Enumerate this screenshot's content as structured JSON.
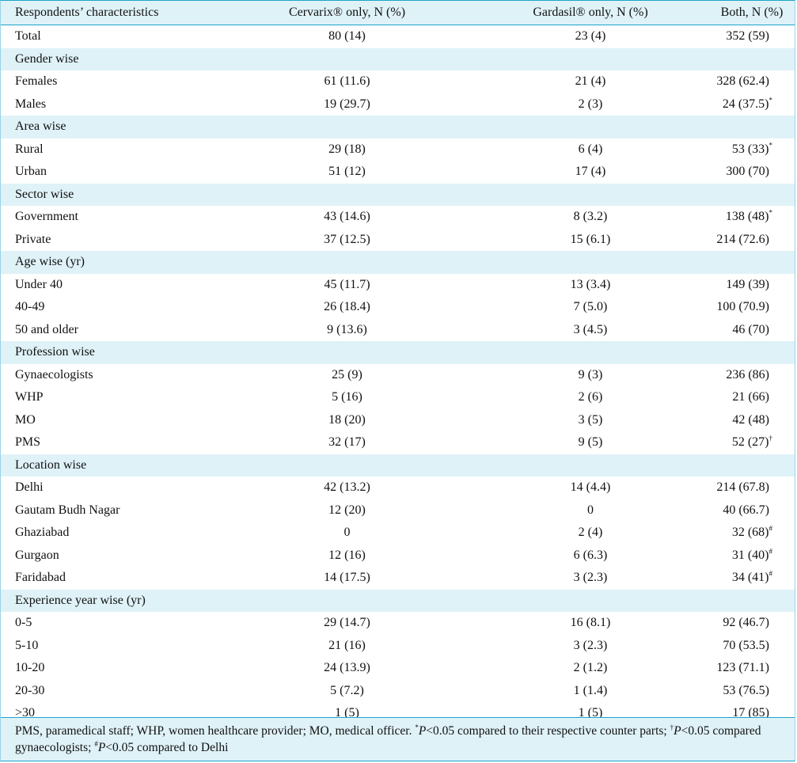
{
  "header": {
    "col1": "Respondents’ characteristics",
    "col2": "Cervarix® only, N (%)",
    "col3": "Gardasil® only, N (%)",
    "col4": "Both, N (%)"
  },
  "rows": [
    {
      "kind": "data",
      "label": "Total",
      "cervarix": "80 (14)",
      "gardasil": "23 (4)",
      "both": "352 (59)",
      "mark": ""
    },
    {
      "kind": "section",
      "label": "Gender wise"
    },
    {
      "kind": "data",
      "label": "Females",
      "cervarix": "61 (11.6)",
      "gardasil": "21 (4)",
      "both": "328 (62.4)",
      "mark": ""
    },
    {
      "kind": "data",
      "label": "Males",
      "cervarix": "19 (29.7)",
      "gardasil": "2 (3)",
      "both": "24 (37.5)",
      "mark": "*"
    },
    {
      "kind": "section",
      "label": "Area wise"
    },
    {
      "kind": "data",
      "label": "Rural",
      "cervarix": "29 (18)",
      "gardasil": "6 (4)",
      "both": "53 (33)",
      "mark": "*"
    },
    {
      "kind": "data",
      "label": "Urban",
      "cervarix": "51 (12)",
      "gardasil": "17 (4)",
      "both": "300 (70)",
      "mark": ""
    },
    {
      "kind": "section",
      "label": "Sector wise"
    },
    {
      "kind": "data",
      "label": "Government",
      "cervarix": "43 (14.6)",
      "gardasil": "8 (3.2)",
      "both": "138 (48)",
      "mark": "*"
    },
    {
      "kind": "data",
      "label": "Private",
      "cervarix": "37 (12.5)",
      "gardasil": "15 (6.1)",
      "both": "214 (72.6)",
      "mark": ""
    },
    {
      "kind": "section",
      "label": "Age wise (yr)"
    },
    {
      "kind": "data",
      "label": "Under 40",
      "cervarix": "45 (11.7)",
      "gardasil": "13 (3.4)",
      "both": "149 (39)",
      "mark": ""
    },
    {
      "kind": "data",
      "label": "40-49",
      "cervarix": "26 (18.4)",
      "gardasil": "7 (5.0)",
      "both": "100 (70.9)",
      "mark": ""
    },
    {
      "kind": "data",
      "label": "50 and older",
      "cervarix": "9 (13.6)",
      "gardasil": "3 (4.5)",
      "both": "46 (70)",
      "mark": ""
    },
    {
      "kind": "section",
      "label": "Profession wise"
    },
    {
      "kind": "data",
      "label": "Gynaecologists",
      "cervarix": "25 (9)",
      "gardasil": "9 (3)",
      "both": "236 (86)",
      "mark": ""
    },
    {
      "kind": "data",
      "label": "WHP",
      "cervarix": "5 (16)",
      "gardasil": "2 (6)",
      "both": "21 (66)",
      "mark": ""
    },
    {
      "kind": "data",
      "label": "MO",
      "cervarix": "18 (20)",
      "gardasil": "3 (5)",
      "both": "42 (48)",
      "mark": ""
    },
    {
      "kind": "data",
      "label": "PMS",
      "cervarix": "32 (17)",
      "gardasil": "9 (5)",
      "both": "52 (27)",
      "mark": "†"
    },
    {
      "kind": "section",
      "label": "Location wise"
    },
    {
      "kind": "data",
      "label": "Delhi",
      "cervarix": "42 (13.2)",
      "gardasil": "14 (4.4)",
      "both": "214 (67.8)",
      "mark": ""
    },
    {
      "kind": "data",
      "label": "Gautam Budh Nagar",
      "cervarix": "12 (20)",
      "gardasil": "0",
      "both": "40 (66.7)",
      "mark": ""
    },
    {
      "kind": "data",
      "label": "Ghaziabad",
      "cervarix": "0",
      "gardasil": "2 (4)",
      "both": "32 (68)",
      "mark": "#"
    },
    {
      "kind": "data",
      "label": "Gurgaon",
      "cervarix": "12 (16)",
      "gardasil": "6 (6.3)",
      "both": "31 (40)",
      "mark": "#"
    },
    {
      "kind": "data",
      "label": "Faridabad",
      "cervarix": "14 (17.5)",
      "gardasil": "3 (2.3)",
      "both": "34 (41)",
      "mark": "#"
    },
    {
      "kind": "section",
      "label": "Experience year wise (yr)"
    },
    {
      "kind": "data",
      "label": "0-5",
      "cervarix": "29 (14.7)",
      "gardasil": "16 (8.1)",
      "both": "92 (46.7)",
      "mark": ""
    },
    {
      "kind": "data",
      "label": "5-10",
      "cervarix": "21 (16)",
      "gardasil": "3 (2.3)",
      "both": "70 (53.5)",
      "mark": ""
    },
    {
      "kind": "data",
      "label": "10-20",
      "cervarix": "24 (13.9)",
      "gardasil": "2 (1.2)",
      "both": "123 (71.1)",
      "mark": ""
    },
    {
      "kind": "data",
      "label": "20-30",
      "cervarix": "5 (7.2)",
      "gardasil": "1 (1.4)",
      "both": "53 (76.5)",
      "mark": ""
    },
    {
      "kind": "data",
      "label": ">30",
      "cervarix": "1 (5)",
      "gardasil": "1 (5)",
      "both": "17 (85)",
      "mark": ""
    }
  ],
  "footnote": {
    "abbrev": "PMS, paramedical staff; WHP, women healthcare provider; MO, medical officer. ",
    "f1_mark": "*",
    "f1_p": "P",
    "f1_text": "<0.05 compared to their respective counter parts; ",
    "f2_mark": "†",
    "f2_p": "P",
    "f2_text": "<0.05 compared gynaecologists; ",
    "f3_mark": "#",
    "f3_p": "P",
    "f3_text": "<0.05 compared to Delhi"
  }
}
